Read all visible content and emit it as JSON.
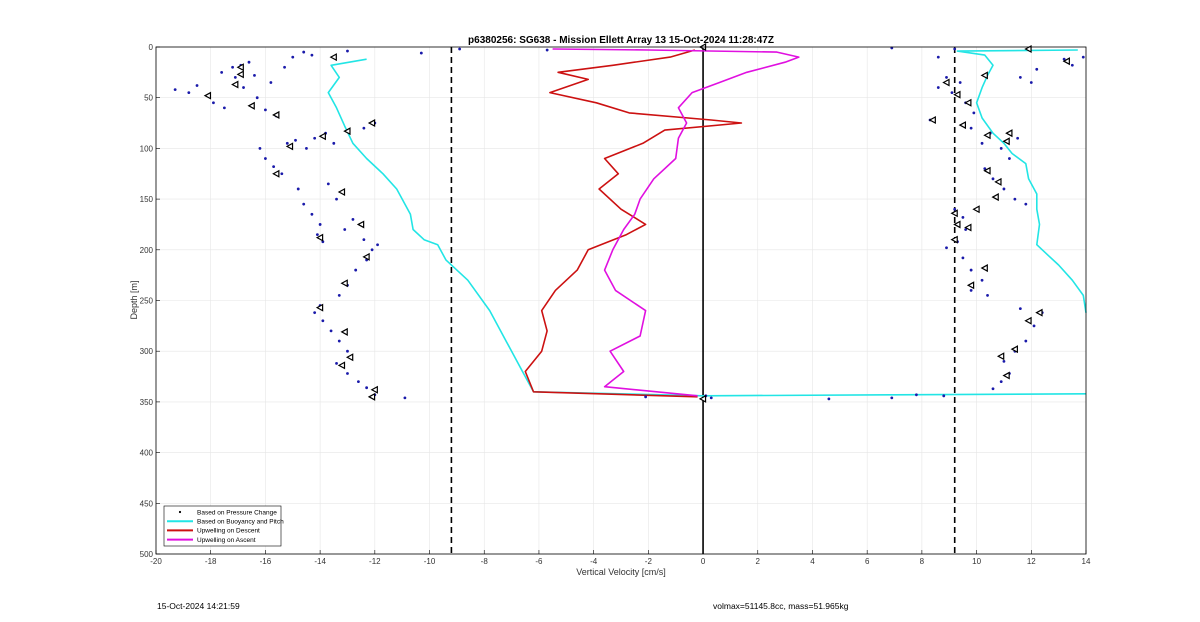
{
  "chart_data": {
    "type": "line",
    "title": "p6380256: SG638 - Mission Ellett Array 13 15-Oct-2024 11:28:47Z",
    "xlabel": "Vertical Velocity [cm/s]",
    "ylabel": "Depth [m]",
    "xlim": [
      -20,
      14
    ],
    "ylim": [
      0,
      500
    ],
    "y_reversed": true,
    "grid": true,
    "x_ticks": [
      -20,
      -18,
      -16,
      -14,
      -12,
      -10,
      -8,
      -6,
      -4,
      -2,
      0,
      2,
      4,
      6,
      8,
      10,
      12,
      14
    ],
    "y_ticks": [
      0,
      50,
      100,
      150,
      200,
      250,
      300,
      350,
      400,
      450,
      500
    ],
    "reference_lines": [
      {
        "x": -9.2,
        "style": "dashed",
        "color": "#000000"
      },
      {
        "x": 0,
        "style": "solid",
        "color": "#000000"
      },
      {
        "x": 9.2,
        "style": "dashed",
        "color": "#000000"
      }
    ],
    "legend": {
      "position": "bottom-left",
      "entries": [
        {
          "label": "Based on Pressure Change",
          "color": "#000000",
          "marker": "dot"
        },
        {
          "label": "Based on Buoyancy and Pitch",
          "color": "#22e5e5",
          "marker": "line"
        },
        {
          "label": "Upwelling on Descent",
          "color": "#cc1111",
          "marker": "line"
        },
        {
          "label": "Upwelling on Ascent",
          "color": "#e010e0",
          "marker": "line"
        }
      ]
    },
    "series": [
      {
        "name": "Based on Buoyancy and Pitch",
        "color": "#22e5e5",
        "branches": [
          {
            "points": [
              [
                -12.3,
                12
              ],
              [
                -13.6,
                18
              ],
              [
                -13.3,
                30
              ],
              [
                -13.7,
                45
              ],
              [
                -13.4,
                60
              ],
              [
                -13.1,
                78
              ],
              [
                -12.8,
                95
              ],
              [
                -12.3,
                110
              ],
              [
                -11.7,
                125
              ],
              [
                -11.2,
                140
              ],
              [
                -11.0,
                150
              ],
              [
                -10.7,
                165
              ],
              [
                -10.6,
                180
              ],
              [
                -10.2,
                190
              ],
              [
                -9.7,
                195
              ],
              [
                -9.4,
                210
              ],
              [
                -8.6,
                230
              ],
              [
                -7.8,
                260
              ],
              [
                -7.2,
                290
              ],
              [
                -6.6,
                320
              ],
              [
                -6.2,
                340
              ]
            ]
          },
          {
            "points": [
              [
                -6.2,
                340
              ],
              [
                0,
                344
              ],
              [
                7,
                343
              ],
              [
                14,
                342
              ]
            ]
          },
          {
            "points": [
              [
                14,
                262
              ],
              [
                13.9,
                245
              ],
              [
                13.5,
                230
              ],
              [
                13.0,
                215
              ],
              [
                12.6,
                205
              ],
              [
                12.2,
                195
              ],
              [
                12.3,
                175
              ],
              [
                12.2,
                160
              ],
              [
                12.2,
                145
              ],
              [
                11.9,
                130
              ],
              [
                11.8,
                115
              ],
              [
                11.3,
                105
              ],
              [
                11.0,
                95
              ],
              [
                10.6,
                85
              ],
              [
                10.2,
                70
              ],
              [
                10.0,
                55
              ],
              [
                10.2,
                40
              ],
              [
                10.4,
                28
              ],
              [
                10.6,
                18
              ],
              [
                10.3,
                8
              ],
              [
                9.3,
                4
              ],
              [
                13.7,
                3
              ]
            ]
          }
        ]
      },
      {
        "name": "Upwelling on Descent",
        "color": "#cc1111",
        "points": [
          [
            -0.3,
            3
          ],
          [
            -1.2,
            10
          ],
          [
            -3.3,
            18
          ],
          [
            -5.3,
            25
          ],
          [
            -4.2,
            32
          ],
          [
            -5.6,
            45
          ],
          [
            -3.9,
            55
          ],
          [
            -2.7,
            65
          ],
          [
            0.3,
            72
          ],
          [
            1.4,
            75
          ],
          [
            -1.4,
            82
          ],
          [
            -2.2,
            95
          ],
          [
            -3.6,
            110
          ],
          [
            -3.1,
            125
          ],
          [
            -3.8,
            140
          ],
          [
            -3.0,
            160
          ],
          [
            -2.1,
            175
          ],
          [
            -2.8,
            185
          ],
          [
            -4.2,
            200
          ],
          [
            -4.6,
            220
          ],
          [
            -5.4,
            240
          ],
          [
            -5.9,
            260
          ],
          [
            -5.7,
            280
          ],
          [
            -5.9,
            300
          ],
          [
            -6.5,
            320
          ],
          [
            -6.2,
            340
          ],
          [
            -0.2,
            345
          ]
        ]
      },
      {
        "name": "Upwelling on Ascent",
        "color": "#e010e0",
        "points": [
          [
            -0.2,
            344
          ],
          [
            -3.6,
            335
          ],
          [
            -2.9,
            320
          ],
          [
            -3.4,
            300
          ],
          [
            -2.3,
            285
          ],
          [
            -2.1,
            260
          ],
          [
            -3.2,
            240
          ],
          [
            -3.6,
            220
          ],
          [
            -3.3,
            200
          ],
          [
            -2.9,
            180
          ],
          [
            -2.5,
            165
          ],
          [
            -2.3,
            150
          ],
          [
            -1.8,
            130
          ],
          [
            -1.0,
            110
          ],
          [
            -0.9,
            90
          ],
          [
            -0.6,
            75
          ],
          [
            -0.9,
            60
          ],
          [
            -0.4,
            45
          ],
          [
            0.6,
            35
          ],
          [
            1.6,
            25
          ],
          [
            3.0,
            15
          ],
          [
            3.5,
            10
          ],
          [
            2.7,
            5
          ],
          [
            -2.0,
            3
          ],
          [
            -5.5,
            2
          ]
        ]
      },
      {
        "name": "Based on Pressure Change",
        "color": "#1a1aaa",
        "marker": "dot",
        "points": [
          [
            -19.3,
            42
          ],
          [
            -18.8,
            45
          ],
          [
            -18.5,
            38
          ],
          [
            -18.1,
            48
          ],
          [
            -17.9,
            55
          ],
          [
            -17.6,
            25
          ],
          [
            -17.5,
            60
          ],
          [
            -17.2,
            20
          ],
          [
            -17.1,
            30
          ],
          [
            -16.9,
            18
          ],
          [
            -16.8,
            40
          ],
          [
            -16.6,
            15
          ],
          [
            -16.4,
            28
          ],
          [
            -16.3,
            50
          ],
          [
            -16.0,
            62
          ],
          [
            -15.8,
            35
          ],
          [
            -15.6,
            68
          ],
          [
            -15.3,
            20
          ],
          [
            -15.0,
            10
          ],
          [
            -14.6,
            5
          ],
          [
            -14.3,
            8
          ],
          [
            -13.0,
            4
          ],
          [
            -10.3,
            6
          ],
          [
            -16.2,
            100
          ],
          [
            -16.0,
            110
          ],
          [
            -15.7,
            118
          ],
          [
            -15.4,
            125
          ],
          [
            -15.2,
            95
          ],
          [
            -14.9,
            92
          ],
          [
            -14.5,
            100
          ],
          [
            -14.2,
            90
          ],
          [
            -13.8,
            85
          ],
          [
            -13.5,
            95
          ],
          [
            -12.4,
            80
          ],
          [
            -12.0,
            75
          ],
          [
            -14.8,
            140
          ],
          [
            -14.6,
            155
          ],
          [
            -14.3,
            165
          ],
          [
            -14.0,
            175
          ],
          [
            -13.7,
            135
          ],
          [
            -13.4,
            150
          ],
          [
            -13.1,
            180
          ],
          [
            -12.8,
            170
          ],
          [
            -12.4,
            190
          ],
          [
            -12.1,
            200
          ],
          [
            -11.9,
            195
          ],
          [
            -14.1,
            185
          ],
          [
            -13.9,
            192
          ],
          [
            -12.3,
            210
          ],
          [
            -12.7,
            220
          ],
          [
            -13.0,
            235
          ],
          [
            -13.3,
            245
          ],
          [
            -14.0,
            255
          ],
          [
            -14.2,
            262
          ],
          [
            -13.9,
            270
          ],
          [
            -13.6,
            280
          ],
          [
            -13.3,
            290
          ],
          [
            -13.0,
            300
          ],
          [
            -13.4,
            312
          ],
          [
            -13.0,
            322
          ],
          [
            -12.6,
            330
          ],
          [
            -12.3,
            336
          ],
          [
            -12.0,
            343
          ],
          [
            -10.9,
            346
          ],
          [
            8.3,
            72
          ],
          [
            8.6,
            40
          ],
          [
            8.9,
            30
          ],
          [
            9.1,
            45
          ],
          [
            9.4,
            35
          ],
          [
            9.6,
            55
          ],
          [
            9.9,
            65
          ],
          [
            9.8,
            80
          ],
          [
            10.2,
            95
          ],
          [
            10.5,
            85
          ],
          [
            10.9,
            100
          ],
          [
            11.2,
            110
          ],
          [
            11.5,
            90
          ],
          [
            10.3,
            120
          ],
          [
            10.6,
            130
          ],
          [
            11.0,
            140
          ],
          [
            11.4,
            150
          ],
          [
            11.8,
            155
          ],
          [
            9.2,
            160
          ],
          [
            9.5,
            168
          ],
          [
            9.6,
            180
          ],
          [
            9.3,
            192
          ],
          [
            8.9,
            198
          ],
          [
            9.5,
            208
          ],
          [
            9.8,
            220
          ],
          [
            10.2,
            230
          ],
          [
            9.8,
            240
          ],
          [
            10.4,
            245
          ],
          [
            11.6,
            258
          ],
          [
            12.4,
            262
          ],
          [
            12.1,
            275
          ],
          [
            11.8,
            290
          ],
          [
            11.4,
            300
          ],
          [
            11.0,
            310
          ],
          [
            11.2,
            322
          ],
          [
            10.9,
            330
          ],
          [
            10.6,
            337
          ],
          [
            13.2,
            12
          ],
          [
            13.5,
            18
          ],
          [
            13.9,
            10
          ],
          [
            12.2,
            22
          ],
          [
            11.6,
            30
          ],
          [
            12.0,
            35
          ],
          [
            6.9,
            1
          ],
          [
            8.6,
            10
          ],
          [
            9.2,
            2
          ],
          [
            7.8,
            343
          ],
          [
            8.8,
            344
          ],
          [
            4.6,
            347
          ],
          [
            6.9,
            346
          ],
          [
            -2.1,
            345
          ],
          [
            0.1,
            344
          ],
          [
            0.3,
            346
          ],
          [
            -5.7,
            3
          ],
          [
            -8.9,
            2
          ]
        ]
      },
      {
        "name": "Based on Pressure Change (triangles)",
        "color": "#000000",
        "marker": "triangle",
        "points": [
          [
            -16.9,
            20
          ],
          [
            -16.9,
            27
          ],
          [
            -17.1,
            37
          ],
          [
            -18.1,
            48
          ],
          [
            -16.5,
            58
          ],
          [
            -15.6,
            67
          ],
          [
            -12.1,
            75
          ],
          [
            -13.0,
            83
          ],
          [
            -13.9,
            88
          ],
          [
            -15.1,
            98
          ],
          [
            -15.6,
            125
          ],
          [
            -13.2,
            143
          ],
          [
            -12.5,
            175
          ],
          [
            -14.0,
            188
          ],
          [
            -12.3,
            207
          ],
          [
            -13.1,
            233
          ],
          [
            -14.0,
            257
          ],
          [
            -13.1,
            281
          ],
          [
            -12.9,
            306
          ],
          [
            -13.2,
            314
          ],
          [
            -12.0,
            338
          ],
          [
            -12.1,
            345
          ],
          [
            -13.5,
            10
          ],
          [
            8.9,
            35
          ],
          [
            9.3,
            47
          ],
          [
            9.7,
            55
          ],
          [
            9.5,
            77
          ],
          [
            10.4,
            87
          ],
          [
            11.2,
            85
          ],
          [
            11.1,
            93
          ],
          [
            10.4,
            122
          ],
          [
            10.8,
            133
          ],
          [
            10.7,
            148
          ],
          [
            10.0,
            160
          ],
          [
            9.2,
            164
          ],
          [
            9.3,
            175
          ],
          [
            9.7,
            178
          ],
          [
            9.2,
            190
          ],
          [
            10.3,
            218
          ],
          [
            9.8,
            235
          ],
          [
            12.3,
            262
          ],
          [
            11.9,
            270
          ],
          [
            11.4,
            298
          ],
          [
            10.9,
            305
          ],
          [
            11.1,
            324
          ],
          [
            11.9,
            2
          ],
          [
            13.3,
            14
          ],
          [
            10.3,
            28
          ],
          [
            8.4,
            72
          ],
          [
            0,
            0
          ],
          [
            0,
            347
          ]
        ]
      }
    ]
  },
  "footer": {
    "timestamp": "15-Oct-2024 14:21:59",
    "vessel_info": "volmax=51145.8cc, mass=51.965kg"
  }
}
